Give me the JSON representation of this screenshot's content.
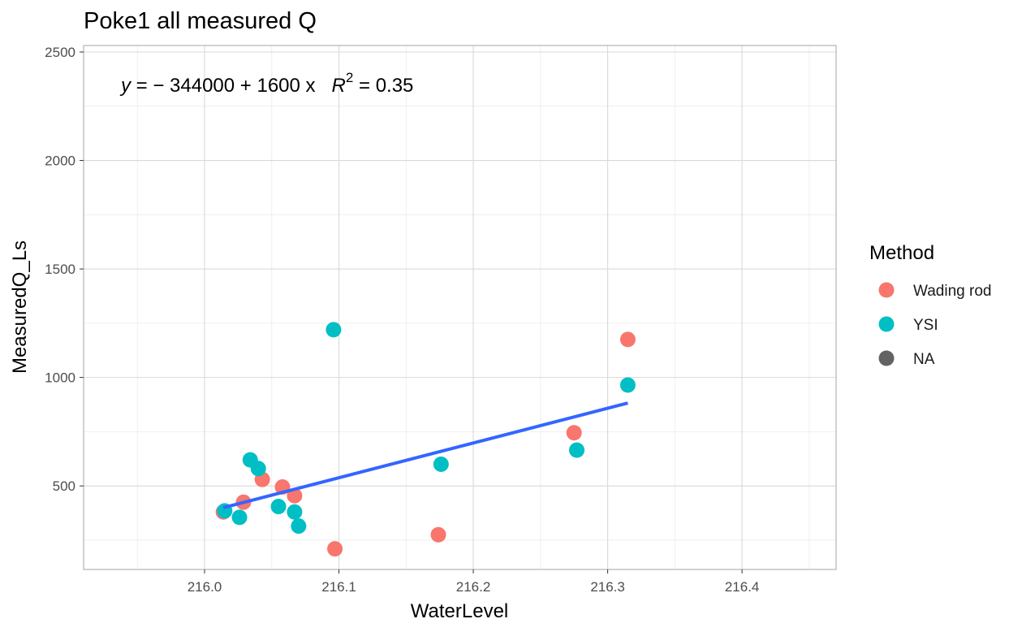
{
  "chart_data": {
    "type": "scatter",
    "title": "Poke1 all measured Q",
    "xlabel": "WaterLevel",
    "ylabel": "MeasuredQ_Ls",
    "xlim": [
      215.91,
      216.47
    ],
    "ylim": [
      115,
      2530
    ],
    "x_ticks": [
      216.0,
      216.1,
      216.2,
      216.3,
      216.4
    ],
    "x_tick_labels": [
      "216.0",
      "216.1",
      "216.2",
      "216.3",
      "216.4"
    ],
    "y_ticks": [
      500,
      1000,
      1500,
      2000,
      2500
    ],
    "y_tick_labels": [
      "500",
      "1000",
      "1500",
      "2000",
      "2500"
    ],
    "grid": true,
    "legend": {
      "title": "Method",
      "position": "right",
      "entries": [
        {
          "label": "Wading rod",
          "color": "#F8766D"
        },
        {
          "label": "YSI",
          "color": "#00BFC4"
        },
        {
          "label": "NA",
          "color": "#636363"
        }
      ]
    },
    "series": [
      {
        "name": "Wading rod",
        "color": "#F8766D",
        "points": [
          {
            "x": 216.014,
            "y": 380
          },
          {
            "x": 216.029,
            "y": 425
          },
          {
            "x": 216.043,
            "y": 530
          },
          {
            "x": 216.058,
            "y": 495
          },
          {
            "x": 216.067,
            "y": 455
          },
          {
            "x": 216.097,
            "y": 210
          },
          {
            "x": 216.174,
            "y": 275
          },
          {
            "x": 216.275,
            "y": 745
          },
          {
            "x": 216.315,
            "y": 1175
          }
        ]
      },
      {
        "name": "YSI",
        "color": "#00BFC4",
        "points": [
          {
            "x": 216.015,
            "y": 385
          },
          {
            "x": 216.026,
            "y": 355
          },
          {
            "x": 216.034,
            "y": 620
          },
          {
            "x": 216.04,
            "y": 580
          },
          {
            "x": 216.055,
            "y": 405
          },
          {
            "x": 216.067,
            "y": 380
          },
          {
            "x": 216.07,
            "y": 315
          },
          {
            "x": 216.096,
            "y": 1220
          },
          {
            "x": 216.176,
            "y": 600
          },
          {
            "x": 216.277,
            "y": 665
          },
          {
            "x": 216.315,
            "y": 965
          }
        ]
      }
    ],
    "fit_line": {
      "color": "#3366FF",
      "start": {
        "x": 216.014,
        "y": 400
      },
      "end": {
        "x": 216.315,
        "y": 882
      }
    },
    "equation": {
      "lhs": "y",
      "rhs": " = − 344000 + 1600 x",
      "r_label": "R",
      "r_sup": "2",
      "r_value": " = 0.35"
    }
  }
}
